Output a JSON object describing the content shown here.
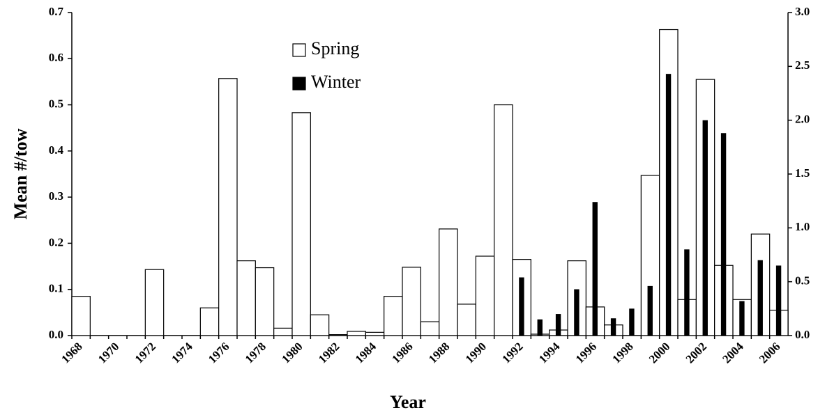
{
  "chart_data": {
    "type": "bar",
    "y_axis_label": "Mean #/tow",
    "x_axis_label": "Year",
    "categories": [
      "1968",
      null,
      "1970",
      null,
      "1972",
      null,
      "1974",
      null,
      "1976",
      null,
      "1978",
      null,
      "1980",
      null,
      "1982",
      null,
      "1984",
      null,
      "1986",
      null,
      "1988",
      null,
      "1990",
      null,
      "1992",
      null,
      "1994",
      null,
      "1996",
      null,
      "1998",
      null,
      "2000",
      null,
      "2002",
      null,
      "2004",
      null,
      "2006"
    ],
    "series": [
      {
        "name": "Spring",
        "color": "#ffffff",
        "axis": "y",
        "values": [
          0.085,
          0,
          0,
          0,
          0.143,
          0,
          0,
          0.06,
          0.557,
          0.162,
          0.147,
          0.016,
          0.483,
          0.045,
          0.002,
          0.009,
          0.007,
          0.085,
          0.148,
          0.03,
          0.231,
          0.068,
          0.172,
          0.5,
          0.165,
          0.003,
          0.012,
          0.162,
          0.062,
          0.023,
          0,
          0.347,
          0.663,
          0.078,
          0.555,
          0.152,
          0.078,
          0.22,
          0.055
        ]
      },
      {
        "name": "Winter",
        "color": "#000000",
        "axis": "y2",
        "values": [
          null,
          null,
          null,
          null,
          null,
          null,
          null,
          null,
          null,
          null,
          null,
          null,
          null,
          null,
          null,
          null,
          null,
          null,
          null,
          null,
          null,
          null,
          null,
          null,
          0.54,
          0.15,
          0.2,
          0.43,
          1.24,
          0.16,
          0.25,
          0.46,
          2.43,
          0.8,
          2.0,
          1.88,
          0.32,
          0.7,
          0.65
        ]
      }
    ],
    "ylim": [
      0,
      0.7
    ],
    "yticks": [
      {
        "value": 0,
        "label": "0.0"
      },
      0.1,
      0.2,
      0.3,
      0.4,
      0.5,
      0.6,
      0.7
    ],
    "y2lim": [
      0,
      3
    ],
    "y2ticks": [
      {
        "value": 0,
        "label": "0.0"
      },
      0.5,
      {
        "value": 1,
        "label": "1.0"
      },
      1.5,
      {
        "value": 2,
        "label": "2.0"
      },
      2.5,
      {
        "value": 3,
        "label": "3.0"
      }
    ],
    "grid": false
  }
}
